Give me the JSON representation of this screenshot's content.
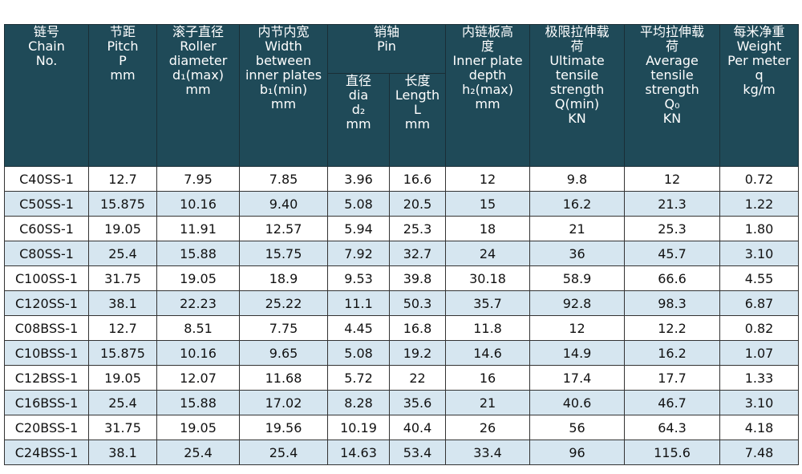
{
  "header": {
    "columns": [
      {
        "top": [
          "链号"
        ],
        "bottom": [
          "Chain",
          "No."
        ]
      },
      {
        "top": [
          "节距",
          "Pitch"
        ],
        "bottom": [
          "P",
          "mm"
        ]
      },
      {
        "top": [
          "滚子直径",
          "Roller",
          "diameter"
        ],
        "bottom": [
          "d₁(max)",
          "mm"
        ]
      },
      {
        "top": [
          "内节内宽",
          "Width",
          "between",
          "inner plates"
        ],
        "bottom": [
          "b₁(min)",
          "mm"
        ]
      },
      {
        "top": [
          "销轴",
          "Pin"
        ],
        "bottom": [],
        "sub": [
          {
            "top": [
              "直径",
              "dia"
            ],
            "bottom": [
              "d₂",
              "mm"
            ]
          },
          {
            "top": [
              "长度",
              "Length"
            ],
            "bottom": [
              "L",
              "mm"
            ]
          }
        ]
      },
      {
        "top": [
          "内链板高",
          "度",
          "Inner plate",
          "depth"
        ],
        "bottom": [
          "h₂(max)",
          "mm"
        ]
      },
      {
        "top": [
          "极限拉伸载",
          "荷",
          "Ultimate",
          "tensile",
          "strength"
        ],
        "bottom": [
          "Q(min)",
          "KN"
        ]
      },
      {
        "top": [
          "平均拉伸载",
          "荷",
          "Average",
          "tensile",
          "strength"
        ],
        "bottom": [
          "Q₀",
          "KN"
        ]
      },
      {
        "top": [
          "每米净重",
          "Weight",
          "Per meter"
        ],
        "bottom": [
          "q",
          "kg/m"
        ]
      }
    ]
  },
  "table": {
    "rows": [
      [
        "C40SS-1",
        "12.7",
        "7.95",
        "7.85",
        "3.96",
        "16.6",
        "12",
        "9.8",
        "12",
        "0.72"
      ],
      [
        "C50SS-1",
        "15.875",
        "10.16",
        "9.40",
        "5.08",
        "20.5",
        "15",
        "16.2",
        "21.3",
        "1.22"
      ],
      [
        "C60SS-1",
        "19.05",
        "11.91",
        "12.57",
        "5.94",
        "25.3",
        "18",
        "21",
        "25.3",
        "1.80"
      ],
      [
        "C80SS-1",
        "25.4",
        "15.88",
        "15.75",
        "7.92",
        "32.7",
        "24",
        "36",
        "45.7",
        "3.10"
      ],
      [
        "C100SS-1",
        "31.75",
        "19.05",
        "18.9",
        "9.53",
        "39.8",
        "30.18",
        "58.9",
        "66.6",
        "4.55"
      ],
      [
        "C120SS-1",
        "38.1",
        "22.23",
        "25.22",
        "11.1",
        "50.3",
        "35.7",
        "92.8",
        "98.3",
        "6.87"
      ],
      [
        "C08BSS-1",
        "12.7",
        "8.51",
        "7.75",
        "4.45",
        "16.8",
        "11.8",
        "12",
        "12.2",
        "0.82"
      ],
      [
        "C10BSS-1",
        "15.875",
        "10.16",
        "9.65",
        "5.08",
        "19.2",
        "14.6",
        "14.9",
        "16.2",
        "1.07"
      ],
      [
        "C12BSS-1",
        "19.05",
        "12.07",
        "11.68",
        "5.72",
        "22",
        "16",
        "17.4",
        "17.7",
        "1.33"
      ],
      [
        "C16BSS-1",
        "25.4",
        "15.88",
        "17.02",
        "8.28",
        "35.6",
        "21",
        "40.6",
        "46.7",
        "3.10"
      ],
      [
        "C20BSS-1",
        "31.75",
        "19.05",
        "19.56",
        "10.19",
        "40.4",
        "26",
        "56",
        "64.3",
        "4.18"
      ],
      [
        "C24BSS-1",
        "38.1",
        "25.4",
        "25.4",
        "14.63",
        "53.4",
        "33.4",
        "96",
        "115.6",
        "7.48"
      ]
    ]
  }
}
